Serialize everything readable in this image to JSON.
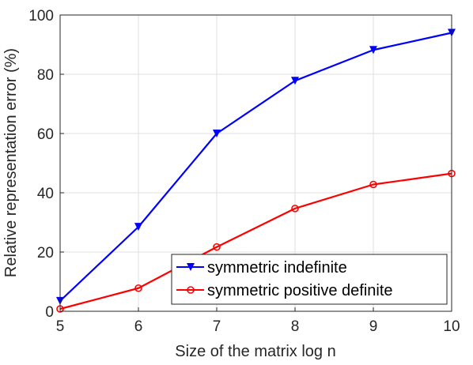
{
  "chart_data": {
    "type": "line",
    "title": "",
    "xlabel": "Size of the matrix log n",
    "ylabel": "Relative representation error (%)",
    "x": [
      5,
      6,
      7,
      8,
      9,
      10
    ],
    "xlim": [
      5,
      10
    ],
    "ylim": [
      0,
      100
    ],
    "xticks": [
      "5",
      "6",
      "7",
      "8",
      "9",
      "10"
    ],
    "yticks": [
      "0",
      "20",
      "40",
      "60",
      "80",
      "100"
    ],
    "grid": true,
    "legend_position": "bottom-right",
    "series": [
      {
        "name": "symmetric indefinite",
        "values": [
          3.5,
          28.5,
          60.0,
          77.8,
          88.2,
          94.0
        ],
        "color": "#0000ff",
        "marker": "triangle-down"
      },
      {
        "name": "symmetric positive definite",
        "values": [
          0.8,
          7.8,
          21.7,
          34.7,
          42.8,
          46.5
        ],
        "color": "#ff0000",
        "marker": "circle"
      }
    ]
  }
}
